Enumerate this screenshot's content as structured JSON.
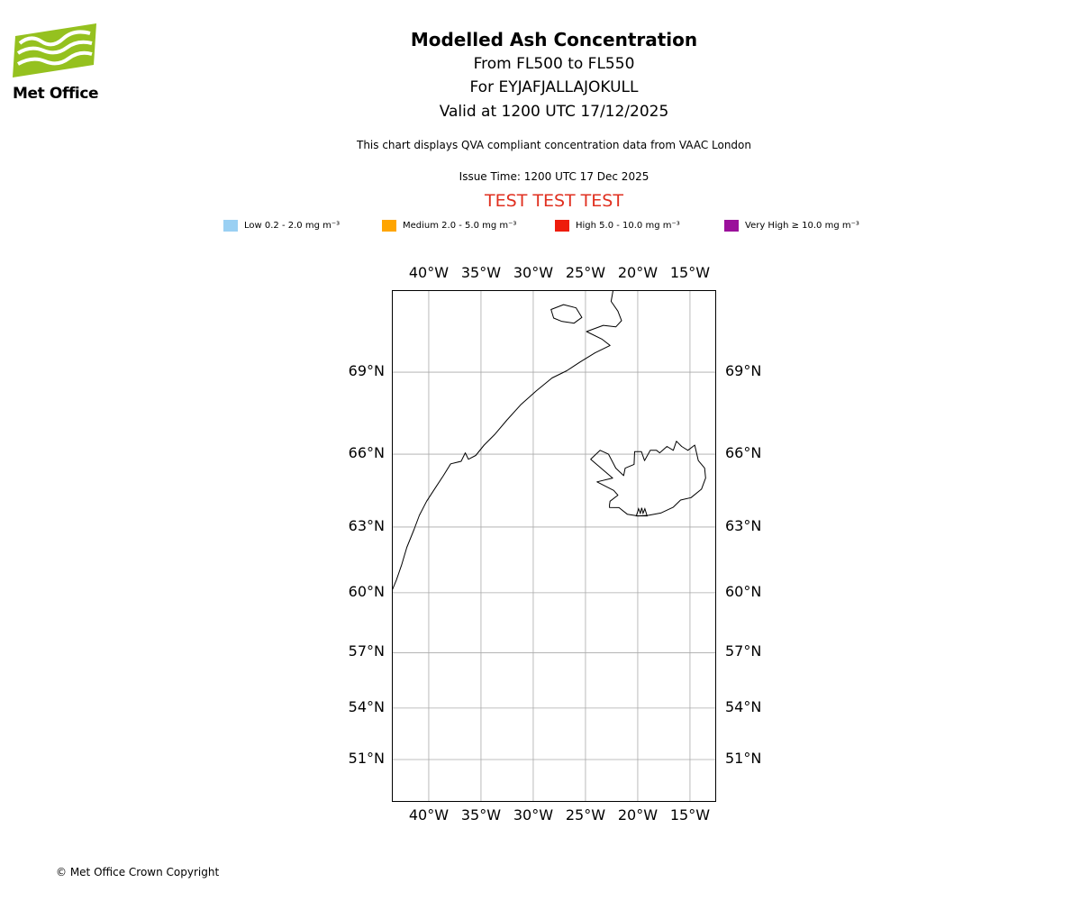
{
  "logo": {
    "text": "Met Office",
    "green": "#95C11F"
  },
  "header": {
    "title": "Modelled Ash Concentration",
    "subtitle1": "From FL500 to FL550",
    "subtitle2": "For EYJAFJALLAJOKULL",
    "subtitle3": "Valid at 1200 UTC 17/12/2025",
    "note": "This chart displays QVA compliant concentration data from VAAC London",
    "issue_time": "Issue Time: 1200 UTC 17 Dec 2025",
    "test_banner": "TEST TEST TEST",
    "test_banner_color": "#E03020"
  },
  "legend": {
    "items": [
      {
        "label": "Low 0.2 - 2.0 mg m⁻³",
        "color": "#9AD0F3"
      },
      {
        "label": "Medium 2.0 - 5.0 mg m⁻³",
        "color": "#FFA500"
      },
      {
        "label": "High 5.0 - 10.0 mg m⁻³",
        "color": "#EE1C0C"
      },
      {
        "label": "Very High ≥ 10.0 mg m⁻³",
        "color": "#9B0F9B"
      }
    ]
  },
  "map": {
    "lon_labels": [
      "40°W",
      "35°W",
      "30°W",
      "25°W",
      "20°W",
      "15°W"
    ],
    "lat_labels": [
      "69°N",
      "66°N",
      "63°N",
      "60°N",
      "57°N",
      "54°N",
      "51°N"
    ],
    "grid_color": "#AAAAAA",
    "coast_color": "#000000",
    "volcano_name": "EYJAFJALLAJOKULL"
  },
  "footer": {
    "copyright": "© Met Office Crown Copyright"
  }
}
